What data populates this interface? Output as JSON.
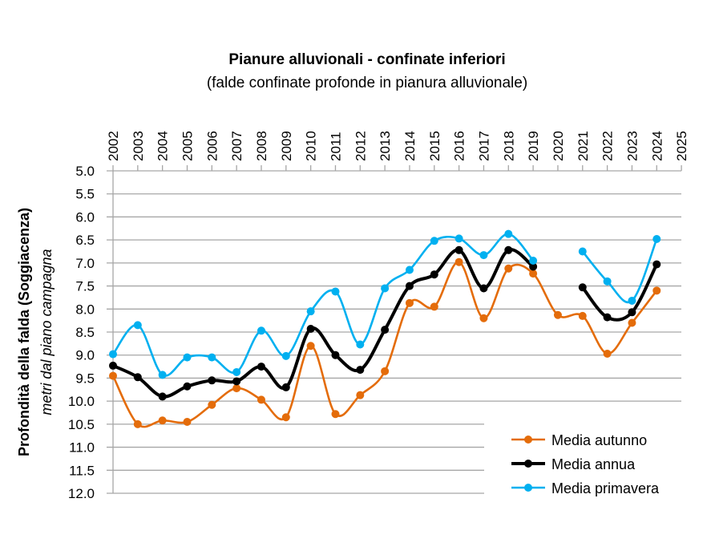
{
  "chart_data": {
    "type": "line",
    "title": "Pianure alluvionali  - confinate inferiori",
    "subtitle": "(falde confinate profonde in pianura alluvionale)",
    "ylabel": "Profondità della falda (Soggiacenza)",
    "ylabel2": "metri dal piano campagna",
    "y_inverted": true,
    "ylim": [
      5.0,
      12.0
    ],
    "yticks": [
      "5.0",
      "5.5",
      "6.0",
      "6.5",
      "7.0",
      "7.5",
      "8.0",
      "8.5",
      "9.0",
      "9.5",
      "10.0",
      "10.5",
      "11.0",
      "11.5",
      "12.0"
    ],
    "x": [
      "2002",
      "2003",
      "2004",
      "2005",
      "2006",
      "2007",
      "2008",
      "2009",
      "2010",
      "2011",
      "2012",
      "2013",
      "2014",
      "2015",
      "2016",
      "2017",
      "2018",
      "2019",
      "2020",
      "2021",
      "2022",
      "2023",
      "2024",
      "2025"
    ],
    "grid": "horizontal",
    "legend_position": "bottom-right",
    "series": [
      {
        "name": "Media autunno",
        "color": "#E46C0A",
        "values": [
          9.45,
          10.5,
          10.42,
          10.45,
          10.08,
          9.72,
          9.97,
          10.35,
          8.8,
          10.28,
          9.87,
          9.35,
          7.87,
          7.95,
          6.98,
          8.2,
          7.12,
          7.23,
          8.13,
          8.15,
          8.97,
          8.3,
          7.6,
          null
        ]
      },
      {
        "name": "Media annua",
        "color": "#000000",
        "values": [
          9.23,
          9.48,
          9.9,
          9.68,
          9.55,
          9.57,
          9.25,
          9.7,
          8.43,
          9.0,
          9.32,
          8.45,
          7.5,
          7.25,
          6.72,
          7.55,
          6.72,
          7.08,
          null,
          7.53,
          8.18,
          8.07,
          7.03,
          null
        ]
      },
      {
        "name": "Media primavera",
        "color": "#00B0F0",
        "values": [
          8.98,
          8.35,
          9.43,
          9.05,
          9.05,
          9.37,
          8.47,
          9.02,
          8.05,
          7.62,
          8.77,
          7.55,
          7.15,
          6.52,
          6.47,
          6.83,
          6.37,
          6.95,
          null,
          6.75,
          7.4,
          7.82,
          6.48,
          null
        ]
      }
    ]
  }
}
